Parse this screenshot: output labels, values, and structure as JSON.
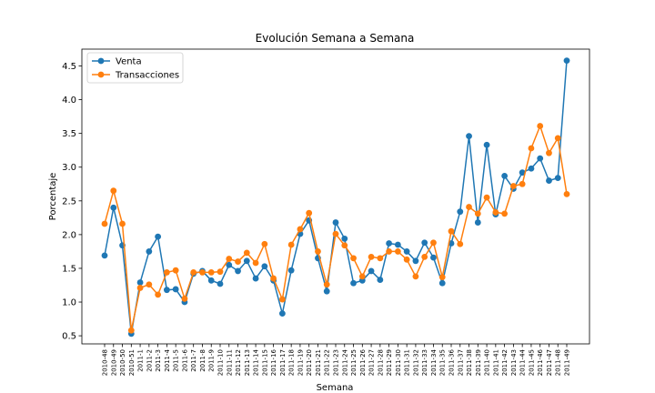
{
  "chart_data": {
    "type": "line",
    "title": "Evolución Semana a Semana",
    "xlabel": "Semana",
    "ylabel": "Porcentaje",
    "ylim": [
      0.38,
      4.75
    ],
    "yticks": [
      0.5,
      1.0,
      1.5,
      2.0,
      2.5,
      3.0,
      3.5,
      4.0,
      4.5
    ],
    "ytick_labels": [
      "0.5",
      "1.0",
      "1.5",
      "2.0",
      "2.5",
      "3.0",
      "3.5",
      "4.0",
      "4.5"
    ],
    "grid": false,
    "legend_position": "top-left",
    "categories": [
      "2010-48",
      "2010-49",
      "2010-50",
      "2010-51",
      "2011-1",
      "2011-2",
      "2011-3",
      "2011-4",
      "2011-5",
      "2011-6",
      "2011-7",
      "2011-8",
      "2011-9",
      "2011-10",
      "2011-11",
      "2011-12",
      "2011-13",
      "2011-14",
      "2011-15",
      "2011-16",
      "2011-17",
      "2011-18",
      "2011-19",
      "2011-20",
      "2011-21",
      "2011-22",
      "2011-23",
      "2011-24",
      "2011-25",
      "2011-26",
      "2011-27",
      "2011-28",
      "2011-29",
      "2011-30",
      "2011-31",
      "2011-32",
      "2011-33",
      "2011-34",
      "2011-35",
      "2011-36",
      "2011-37",
      "2011-38",
      "2011-39",
      "2011-40",
      "2011-41",
      "2011-42",
      "2011-43",
      "2011-44",
      "2011-45",
      "2011-46",
      "2011-47",
      "2011-48",
      "2011-49"
    ],
    "series": [
      {
        "name": "Venta",
        "color": "#1f77b4",
        "values": [
          1.69,
          2.4,
          1.84,
          0.53,
          1.29,
          1.75,
          1.97,
          1.18,
          1.19,
          1.0,
          1.42,
          1.46,
          1.32,
          1.27,
          1.55,
          1.46,
          1.61,
          1.35,
          1.53,
          1.32,
          0.83,
          1.47,
          2.01,
          2.21,
          1.65,
          1.16,
          2.18,
          1.94,
          1.28,
          1.32,
          1.46,
          1.33,
          1.87,
          1.85,
          1.75,
          1.61,
          1.88,
          1.66,
          1.28,
          1.87,
          2.34,
          3.46,
          2.18,
          3.33,
          2.3,
          2.87,
          2.68,
          2.92,
          2.98,
          3.13,
          2.8,
          2.84,
          4.58
        ]
      },
      {
        "name": "Transacciones",
        "color": "#ff7f0e",
        "values": [
          2.16,
          2.65,
          2.16,
          0.58,
          1.21,
          1.26,
          1.11,
          1.44,
          1.47,
          1.05,
          1.44,
          1.44,
          1.44,
          1.45,
          1.64,
          1.6,
          1.73,
          1.58,
          1.86,
          1.35,
          1.04,
          1.85,
          2.08,
          2.32,
          1.75,
          1.26,
          2.01,
          1.84,
          1.65,
          1.38,
          1.67,
          1.65,
          1.75,
          1.75,
          1.63,
          1.38,
          1.67,
          1.88,
          1.37,
          2.05,
          1.86,
          2.41,
          2.31,
          2.55,
          2.33,
          2.31,
          2.72,
          2.75,
          3.28,
          3.61,
          3.21,
          3.43,
          2.6
        ]
      }
    ]
  }
}
